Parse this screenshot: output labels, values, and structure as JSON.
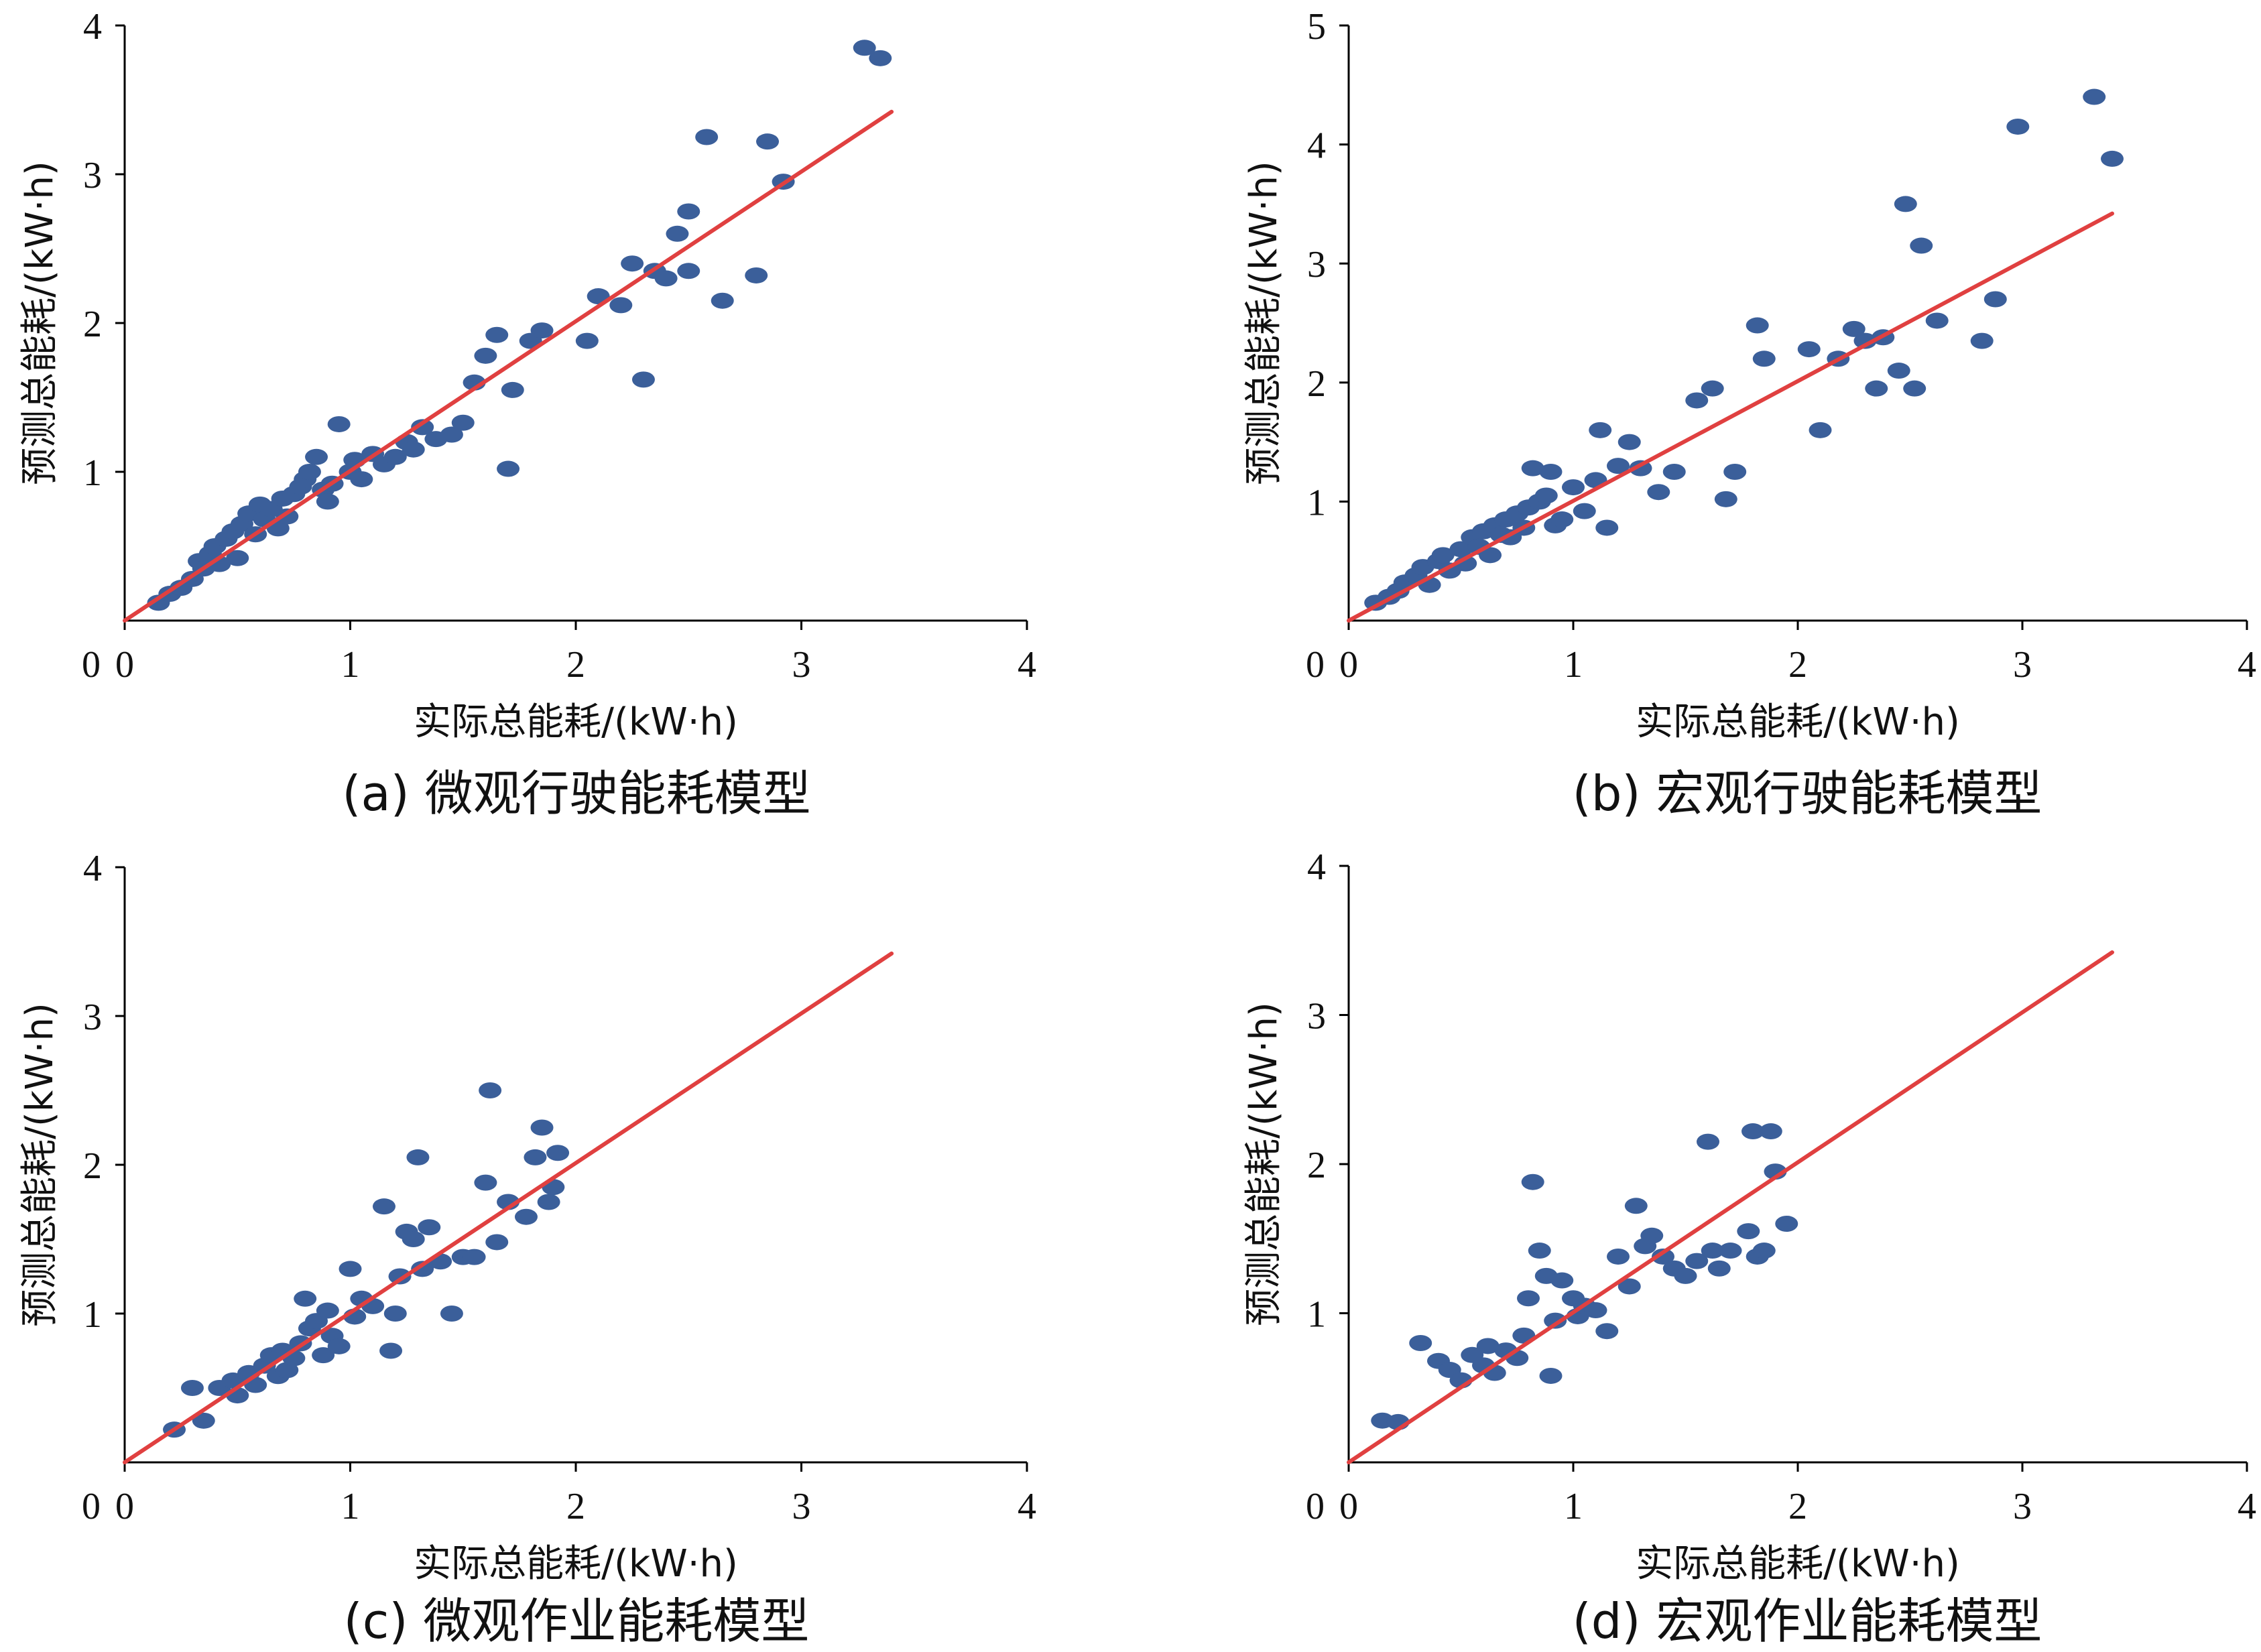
{
  "panels": [
    {
      "caption": "(a)  微观行驶能耗模型",
      "chart_data": {
        "type": "scatter",
        "xlabel": "实际总能耗/(kW·h)",
        "ylabel": "预测总能耗/(kW·h)",
        "xlim": [
          0,
          4
        ],
        "ylim": [
          0,
          4
        ],
        "xticks": [
          "0",
          "1",
          "2",
          "3",
          "4"
        ],
        "yticks": [
          "1",
          "2",
          "3",
          "4"
        ],
        "point_color": "#3b5f9a",
        "fit_line": {
          "color": "#e04040",
          "x": [
            0.0,
            3.4
          ],
          "y": [
            0.0,
            3.42
          ]
        },
        "points": [
          [
            0.15,
            0.12
          ],
          [
            0.2,
            0.18
          ],
          [
            0.25,
            0.22
          ],
          [
            0.3,
            0.28
          ],
          [
            0.33,
            0.4
          ],
          [
            0.35,
            0.35
          ],
          [
            0.38,
            0.45
          ],
          [
            0.4,
            0.5
          ],
          [
            0.42,
            0.38
          ],
          [
            0.45,
            0.55
          ],
          [
            0.48,
            0.6
          ],
          [
            0.5,
            0.42
          ],
          [
            0.52,
            0.65
          ],
          [
            0.55,
            0.72
          ],
          [
            0.58,
            0.58
          ],
          [
            0.6,
            0.78
          ],
          [
            0.62,
            0.68
          ],
          [
            0.65,
            0.75
          ],
          [
            0.68,
            0.62
          ],
          [
            0.7,
            0.82
          ],
          [
            0.72,
            0.7
          ],
          [
            0.75,
            0.85
          ],
          [
            0.78,
            0.9
          ],
          [
            0.8,
            0.95
          ],
          [
            0.82,
            1.0
          ],
          [
            0.85,
            1.1
          ],
          [
            0.88,
            0.88
          ],
          [
            0.9,
            0.8
          ],
          [
            0.92,
            0.92
          ],
          [
            0.95,
            1.32
          ],
          [
            1.0,
            1.0
          ],
          [
            1.02,
            1.08
          ],
          [
            1.05,
            0.95
          ],
          [
            1.1,
            1.12
          ],
          [
            1.15,
            1.05
          ],
          [
            1.2,
            1.1
          ],
          [
            1.25,
            1.2
          ],
          [
            1.28,
            1.15
          ],
          [
            1.32,
            1.3
          ],
          [
            1.38,
            1.22
          ],
          [
            1.45,
            1.25
          ],
          [
            1.5,
            1.33
          ],
          [
            1.55,
            1.6
          ],
          [
            1.6,
            1.78
          ],
          [
            1.65,
            1.92
          ],
          [
            1.7,
            1.02
          ],
          [
            1.72,
            1.55
          ],
          [
            1.8,
            1.88
          ],
          [
            1.85,
            1.95
          ],
          [
            2.05,
            1.88
          ],
          [
            2.1,
            2.18
          ],
          [
            2.2,
            2.12
          ],
          [
            2.25,
            2.4
          ],
          [
            2.3,
            1.62
          ],
          [
            2.35,
            2.35
          ],
          [
            2.4,
            2.3
          ],
          [
            2.45,
            2.6
          ],
          [
            2.5,
            2.35
          ],
          [
            2.5,
            2.75
          ],
          [
            2.58,
            3.25
          ],
          [
            2.65,
            2.15
          ],
          [
            2.8,
            2.32
          ],
          [
            2.85,
            3.22
          ],
          [
            2.92,
            2.95
          ],
          [
            3.28,
            3.85
          ],
          [
            3.35,
            3.78
          ]
        ]
      }
    },
    {
      "caption": "(b)  宏观行驶能耗模型",
      "chart_data": {
        "type": "scatter",
        "xlabel": "实际总能耗/(kW·h)",
        "ylabel": "预测总能耗/(kW·h)",
        "xlim": [
          0,
          4
        ],
        "ylim": [
          0,
          5
        ],
        "xticks": [
          "0",
          "1",
          "2",
          "3",
          "4"
        ],
        "yticks": [
          "1",
          "2",
          "3",
          "4",
          "5"
        ],
        "point_color": "#3b5f9a",
        "fit_line": {
          "color": "#e04040",
          "x": [
            0.0,
            3.4
          ],
          "y": [
            0.0,
            3.42
          ]
        },
        "points": [
          [
            0.12,
            0.15
          ],
          [
            0.18,
            0.2
          ],
          [
            0.22,
            0.25
          ],
          [
            0.25,
            0.32
          ],
          [
            0.3,
            0.38
          ],
          [
            0.33,
            0.45
          ],
          [
            0.36,
            0.3
          ],
          [
            0.4,
            0.5
          ],
          [
            0.42,
            0.55
          ],
          [
            0.45,
            0.42
          ],
          [
            0.5,
            0.6
          ],
          [
            0.52,
            0.48
          ],
          [
            0.55,
            0.7
          ],
          [
            0.58,
            0.62
          ],
          [
            0.6,
            0.75
          ],
          [
            0.63,
            0.55
          ],
          [
            0.65,
            0.8
          ],
          [
            0.68,
            0.72
          ],
          [
            0.7,
            0.85
          ],
          [
            0.72,
            0.7
          ],
          [
            0.75,
            0.9
          ],
          [
            0.78,
            0.78
          ],
          [
            0.8,
            0.95
          ],
          [
            0.82,
            1.28
          ],
          [
            0.85,
            1.0
          ],
          [
            0.88,
            1.05
          ],
          [
            0.9,
            1.25
          ],
          [
            0.92,
            0.8
          ],
          [
            0.95,
            0.85
          ],
          [
            1.0,
            1.12
          ],
          [
            1.05,
            0.92
          ],
          [
            1.1,
            1.18
          ],
          [
            1.12,
            1.6
          ],
          [
            1.15,
            0.78
          ],
          [
            1.2,
            1.3
          ],
          [
            1.25,
            1.5
          ],
          [
            1.3,
            1.28
          ],
          [
            1.38,
            1.08
          ],
          [
            1.45,
            1.25
          ],
          [
            1.55,
            1.85
          ],
          [
            1.62,
            1.95
          ],
          [
            1.68,
            1.02
          ],
          [
            1.72,
            1.25
          ],
          [
            1.82,
            2.48
          ],
          [
            1.85,
            2.2
          ],
          [
            2.05,
            2.28
          ],
          [
            2.1,
            1.6
          ],
          [
            2.18,
            2.2
          ],
          [
            2.25,
            2.45
          ],
          [
            2.3,
            2.35
          ],
          [
            2.35,
            1.95
          ],
          [
            2.38,
            2.38
          ],
          [
            2.45,
            2.1
          ],
          [
            2.48,
            3.5
          ],
          [
            2.52,
            1.95
          ],
          [
            2.55,
            3.15
          ],
          [
            2.62,
            2.52
          ],
          [
            2.82,
            2.35
          ],
          [
            2.88,
            2.7
          ],
          [
            2.98,
            4.15
          ],
          [
            3.32,
            4.4
          ],
          [
            3.4,
            3.88
          ]
        ]
      }
    },
    {
      "caption": "(c)  微观作业能耗模型",
      "chart_data": {
        "type": "scatter",
        "xlabel": "实际总能耗/(kW·h)",
        "ylabel": "预测总能耗/(kW·h)",
        "xlim": [
          0,
          4
        ],
        "ylim": [
          0,
          4
        ],
        "xticks": [
          "0",
          "1",
          "2",
          "3",
          "4"
        ],
        "yticks": [
          "1",
          "2",
          "3",
          "4"
        ],
        "point_color": "#3b5f9a",
        "fit_line": {
          "color": "#e04040",
          "x": [
            0.0,
            3.4
          ],
          "y": [
            0.0,
            3.42
          ]
        },
        "points": [
          [
            0.22,
            0.22
          ],
          [
            0.3,
            0.5
          ],
          [
            0.35,
            0.28
          ],
          [
            0.42,
            0.5
          ],
          [
            0.48,
            0.55
          ],
          [
            0.5,
            0.45
          ],
          [
            0.55,
            0.6
          ],
          [
            0.58,
            0.52
          ],
          [
            0.62,
            0.65
          ],
          [
            0.65,
            0.72
          ],
          [
            0.68,
            0.58
          ],
          [
            0.7,
            0.75
          ],
          [
            0.72,
            0.62
          ],
          [
            0.75,
            0.7
          ],
          [
            0.78,
            0.8
          ],
          [
            0.8,
            1.1
          ],
          [
            0.82,
            0.9
          ],
          [
            0.85,
            0.95
          ],
          [
            0.88,
            0.72
          ],
          [
            0.9,
            1.02
          ],
          [
            0.92,
            0.85
          ],
          [
            0.95,
            0.78
          ],
          [
            1.0,
            1.3
          ],
          [
            1.02,
            0.98
          ],
          [
            1.05,
            1.1
          ],
          [
            1.1,
            1.05
          ],
          [
            1.15,
            1.72
          ],
          [
            1.18,
            0.75
          ],
          [
            1.2,
            1.0
          ],
          [
            1.22,
            1.25
          ],
          [
            1.25,
            1.55
          ],
          [
            1.28,
            1.5
          ],
          [
            1.3,
            2.05
          ],
          [
            1.32,
            1.3
          ],
          [
            1.35,
            1.58
          ],
          [
            1.4,
            1.35
          ],
          [
            1.45,
            1.0
          ],
          [
            1.5,
            1.38
          ],
          [
            1.55,
            1.38
          ],
          [
            1.6,
            1.88
          ],
          [
            1.62,
            2.5
          ],
          [
            1.65,
            1.48
          ],
          [
            1.7,
            1.75
          ],
          [
            1.78,
            1.65
          ],
          [
            1.82,
            2.05
          ],
          [
            1.85,
            2.25
          ],
          [
            1.88,
            1.75
          ],
          [
            1.92,
            2.08
          ],
          [
            1.9,
            1.85
          ]
        ]
      }
    },
    {
      "caption": "(d)  宏观作业能耗模型",
      "chart_data": {
        "type": "scatter",
        "xlabel": "实际总能耗/(kW·h)",
        "ylabel": "预测总能耗/(kW·h)",
        "xlim": [
          0,
          4
        ],
        "ylim": [
          0,
          4
        ],
        "xticks": [
          "0",
          "1",
          "2",
          "3",
          "4"
        ],
        "yticks": [
          "1",
          "2",
          "3",
          "4"
        ],
        "point_color": "#3b5f9a",
        "fit_line": {
          "color": "#e04040",
          "x": [
            0.0,
            3.4
          ],
          "y": [
            0.0,
            3.42
          ]
        },
        "points": [
          [
            0.15,
            0.28
          ],
          [
            0.22,
            0.27
          ],
          [
            0.32,
            0.8
          ],
          [
            0.4,
            0.68
          ],
          [
            0.45,
            0.62
          ],
          [
            0.5,
            0.55
          ],
          [
            0.55,
            0.72
          ],
          [
            0.6,
            0.65
          ],
          [
            0.62,
            0.78
          ],
          [
            0.65,
            0.6
          ],
          [
            0.7,
            0.75
          ],
          [
            0.75,
            0.7
          ],
          [
            0.78,
            0.85
          ],
          [
            0.8,
            1.1
          ],
          [
            0.82,
            1.88
          ],
          [
            0.85,
            1.42
          ],
          [
            0.88,
            1.25
          ],
          [
            0.9,
            0.58
          ],
          [
            0.92,
            0.95
          ],
          [
            0.95,
            1.22
          ],
          [
            1.0,
            1.1
          ],
          [
            1.02,
            0.98
          ],
          [
            1.05,
            1.05
          ],
          [
            1.1,
            1.02
          ],
          [
            1.15,
            0.88
          ],
          [
            1.2,
            1.38
          ],
          [
            1.25,
            1.18
          ],
          [
            1.28,
            1.72
          ],
          [
            1.32,
            1.45
          ],
          [
            1.35,
            1.52
          ],
          [
            1.4,
            1.38
          ],
          [
            1.45,
            1.3
          ],
          [
            1.5,
            1.25
          ],
          [
            1.55,
            1.35
          ],
          [
            1.6,
            2.15
          ],
          [
            1.62,
            1.42
          ],
          [
            1.65,
            1.3
          ],
          [
            1.7,
            1.42
          ],
          [
            1.78,
            1.55
          ],
          [
            1.8,
            2.22
          ],
          [
            1.82,
            1.38
          ],
          [
            1.85,
            1.42
          ],
          [
            1.88,
            2.22
          ],
          [
            1.9,
            1.95
          ],
          [
            1.95,
            1.6
          ]
        ]
      }
    }
  ]
}
